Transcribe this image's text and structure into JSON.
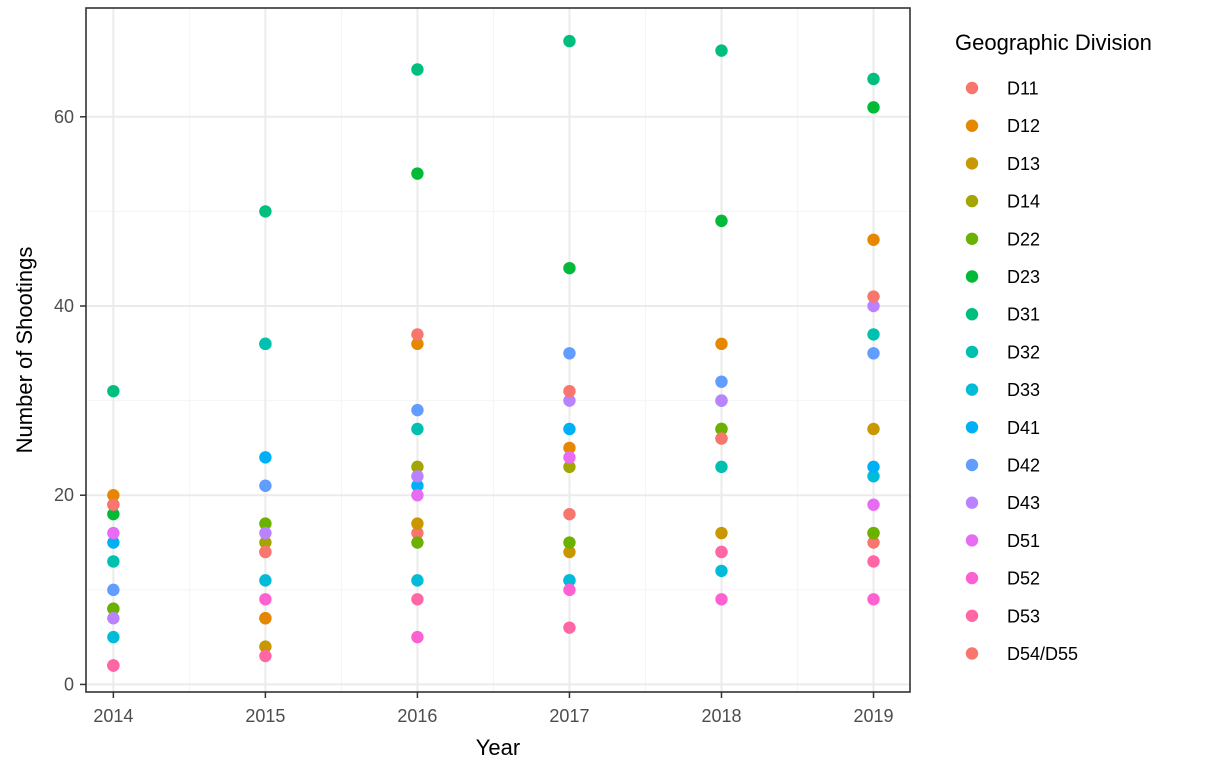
{
  "chart_data": {
    "type": "scatter",
    "xlabel": "Year",
    "ylabel": "Number of Shootings",
    "xlim": [
      2013.82,
      2019.24
    ],
    "ylim": [
      -0.8,
      71.5
    ],
    "x_ticks": [
      2014,
      2015,
      2016,
      2017,
      2018,
      2019
    ],
    "y_ticks": [
      0,
      20,
      40,
      60
    ],
    "grid": true,
    "legend": {
      "title": "Geographic Division",
      "position": "right"
    },
    "series": [
      {
        "name": "D11",
        "color": "#F8766D",
        "values": [
          19,
          7,
          16,
          18,
          26,
          15
        ]
      },
      {
        "name": "D12",
        "color": "#E58700",
        "values": [
          20,
          7,
          36,
          25,
          36,
          47
        ]
      },
      {
        "name": "D13",
        "color": "#C99800",
        "values": [
          2,
          4,
          17,
          14,
          16,
          27
        ]
      },
      {
        "name": "D14",
        "color": "#A3A500",
        "values": [
          8,
          15,
          23,
          23,
          27,
          16
        ]
      },
      {
        "name": "D22",
        "color": "#6BB100",
        "values": [
          8,
          17,
          15,
          15,
          27,
          16
        ]
      },
      {
        "name": "D23",
        "color": "#00BA38",
        "values": [
          18,
          36,
          54,
          44,
          49,
          61
        ]
      },
      {
        "name": "D31",
        "color": "#00BF7D",
        "values": [
          31,
          50,
          65,
          68,
          67,
          64
        ]
      },
      {
        "name": "D32",
        "color": "#00C0AF",
        "values": [
          13,
          36,
          27,
          11,
          23,
          37
        ]
      },
      {
        "name": "D33",
        "color": "#00BCD8",
        "values": [
          5,
          11,
          11,
          11,
          12,
          22
        ]
      },
      {
        "name": "D41",
        "color": "#00B0F6",
        "values": [
          15,
          24,
          21,
          27,
          30,
          23
        ]
      },
      {
        "name": "D42",
        "color": "#619CFF",
        "values": [
          10,
          21,
          29,
          35,
          32,
          35
        ]
      },
      {
        "name": "D43",
        "color": "#B983FF",
        "values": [
          7,
          16,
          22,
          30,
          30,
          40
        ]
      },
      {
        "name": "D51",
        "color": "#E76BF3",
        "values": [
          16,
          14,
          20,
          24,
          14,
          19
        ]
      },
      {
        "name": "D52",
        "color": "#FD61D1",
        "values": [
          2,
          9,
          5,
          10,
          9,
          9
        ]
      },
      {
        "name": "D53",
        "color": "#FF67A4",
        "values": [
          2,
          3,
          9,
          6,
          14,
          13
        ]
      },
      {
        "name": "D54/D55",
        "color": "#F8766D",
        "values": [
          19,
          14,
          37,
          31,
          26,
          41
        ]
      }
    ]
  },
  "colors": {
    "panel_border": "#333333",
    "grid_major": "#EBEBEB",
    "grid_minor": "#F5F5F5",
    "tick": "#333333"
  }
}
